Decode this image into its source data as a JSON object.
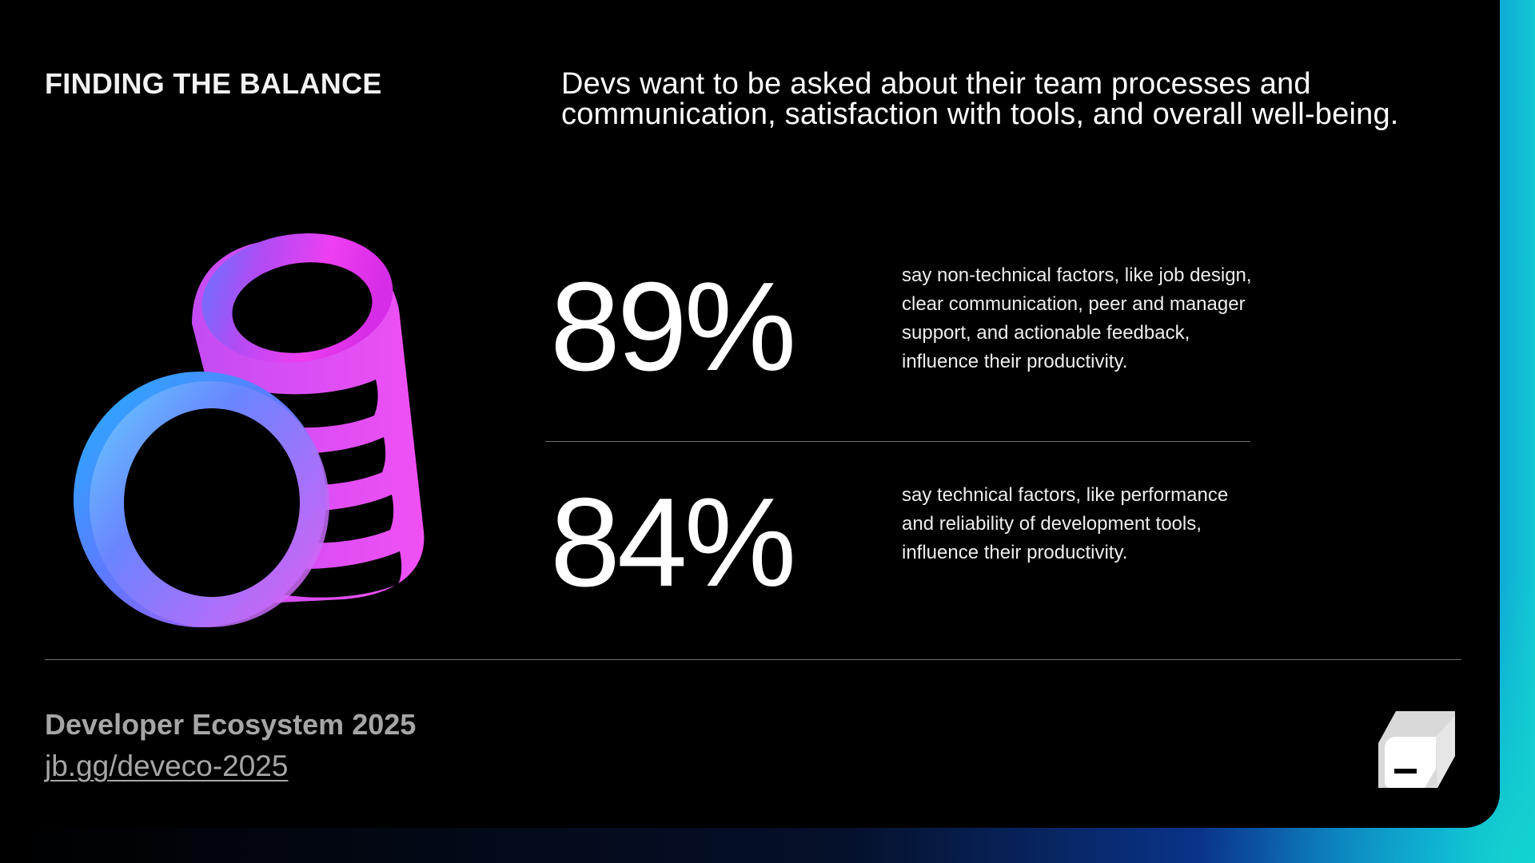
{
  "header": {
    "eyebrow": "FINDING THE BALANCE",
    "headline_line1": "Devs want to be asked about their team processes and",
    "headline_line2": "communication, satisfaction with tools, and overall well-being."
  },
  "stats": [
    {
      "value": "89%",
      "description": "say non-technical factors, like job design, clear communication, peer and manager support, and actionable feedback, influence their productivity."
    },
    {
      "value": "84%",
      "description": "say technical factors, like performance and reliability of development tools, influence their productivity."
    }
  ],
  "footer": {
    "title": "Developer Ecosystem 2025",
    "link": "jb.gg/deveco-2025"
  },
  "illustration": {
    "icon": "coin-stack-icon"
  },
  "logo": {
    "icon": "jetbrains-logo-icon"
  },
  "colors": {
    "accent_pink": "#e83cf2",
    "accent_blue": "#2a9dff",
    "edge_teal": "#13c9d4"
  }
}
